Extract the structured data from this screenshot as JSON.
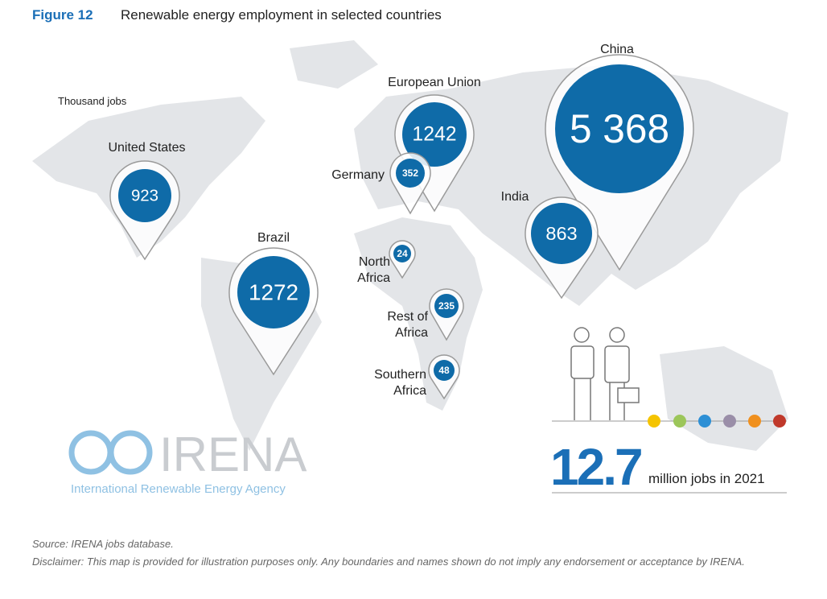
{
  "header": {
    "figure": "Figure 12",
    "title": "Renewable energy employment in selected countries"
  },
  "unit": "Thousand jobs",
  "pins": [
    {
      "name": "United States",
      "value": "923"
    },
    {
      "name": "Brazil",
      "value": "1272"
    },
    {
      "name": "European Union",
      "value": "1242"
    },
    {
      "name": "Germany",
      "value": "352"
    },
    {
      "name": "China",
      "value": "5 368"
    },
    {
      "name": "India",
      "value": "863"
    },
    {
      "name": "North Africa",
      "value": "24"
    },
    {
      "name": "Rest of Africa",
      "value": "235"
    },
    {
      "name": "Southern Africa",
      "value": "48"
    }
  ],
  "total": {
    "value": "12.7",
    "label": "million jobs in 2021"
  },
  "logo": {
    "name": "IRENA",
    "full_name": "International Renewable Energy Agency"
  },
  "source": "Source: IRENA jobs database.",
  "disclaimer": "Disclaimer: This map is provided for illustration purposes only. Any boundaries and names shown do not imply any endorsement or acceptance by IRENA."
}
